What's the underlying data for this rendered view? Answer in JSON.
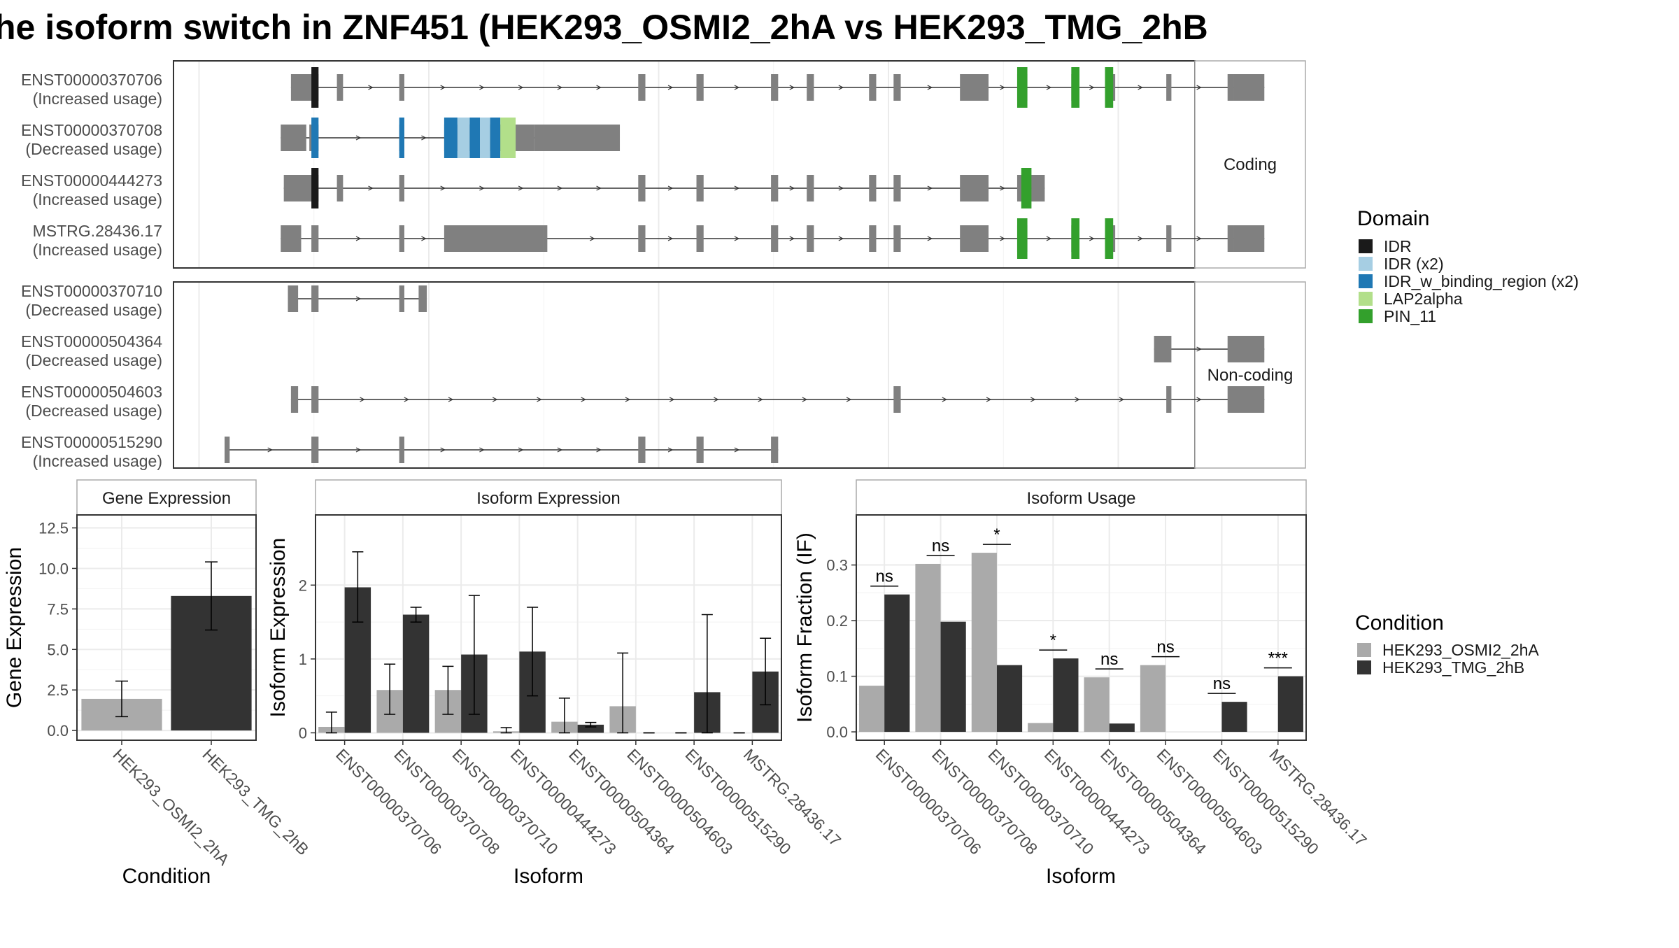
{
  "title": "he isoform switch in ZNF451 (HEK293_OSMI2_2hA vs HEK293_TMG_2hB",
  "colors": {
    "IDR": "#1a1a1a",
    "IDR (x2)": "#a6cee3",
    "IDR_w_binding_region (x2)": "#1f78b4",
    "LAP2alpha": "#b2df8a",
    "PIN_11": "#33a02c",
    "exon": "#808080",
    "cond_a": "#aaaaaa",
    "cond_b": "#333333"
  },
  "structure": {
    "coding_label": "Coding",
    "noncoding_label": "Non-coding",
    "coding": [
      {
        "name": "ENST00000370706",
        "usage": "(Increased usage)",
        "exons": [
          [
            0.115,
            0.125
          ],
          [
            0.125,
            0.142
          ],
          [
            0.16,
            0.166
          ],
          [
            0.221,
            0.226
          ],
          [
            0.455,
            0.462
          ],
          [
            0.512,
            0.519
          ],
          [
            0.585,
            0.592
          ],
          [
            0.62,
            0.627
          ],
          [
            0.681,
            0.688
          ],
          [
            0.705,
            0.712
          ],
          [
            0.77,
            0.798
          ],
          [
            0.826,
            0.836
          ],
          [
            0.879,
            0.887
          ],
          [
            0.912,
            0.922
          ],
          [
            0.972,
            0.977
          ],
          [
            1.032,
            1.038
          ],
          [
            1.038,
            1.068
          ]
        ],
        "domains": [
          [
            0.135,
            0.142,
            "IDR"
          ],
          [
            0.826,
            0.836,
            "PIN_11"
          ],
          [
            0.879,
            0.887,
            "PIN_11"
          ],
          [
            0.912,
            0.92,
            "PIN_11"
          ]
        ]
      },
      {
        "name": "ENST00000370708",
        "usage": "(Decreased usage)",
        "exons": [
          [
            0.105,
            0.125
          ],
          [
            0.125,
            0.13
          ],
          [
            0.133,
            0.142
          ],
          [
            0.221,
            0.226
          ],
          [
            0.265,
            0.353
          ],
          [
            0.353,
            0.437
          ]
        ],
        "domains": [
          [
            0.135,
            0.142,
            "IDR_w_binding_region (x2)"
          ],
          [
            0.221,
            0.226,
            "IDR_w_binding_region (x2)"
          ],
          [
            0.265,
            0.278,
            "IDR_w_binding_region (x2)"
          ],
          [
            0.278,
            0.29,
            "IDR (x2)"
          ],
          [
            0.29,
            0.3,
            "IDR_w_binding_region (x2)"
          ],
          [
            0.3,
            0.31,
            "IDR (x2)"
          ],
          [
            0.31,
            0.32,
            "IDR_w_binding_region (x2)"
          ],
          [
            0.32,
            0.335,
            "LAP2alpha"
          ]
        ]
      },
      {
        "name": "ENST00000444273",
        "usage": "(Increased usage)",
        "exons": [
          [
            0.108,
            0.125
          ],
          [
            0.125,
            0.142
          ],
          [
            0.16,
            0.166
          ],
          [
            0.221,
            0.226
          ],
          [
            0.455,
            0.462
          ],
          [
            0.512,
            0.519
          ],
          [
            0.585,
            0.592
          ],
          [
            0.62,
            0.627
          ],
          [
            0.681,
            0.688
          ],
          [
            0.705,
            0.712
          ],
          [
            0.77,
            0.798
          ],
          [
            0.826,
            0.84
          ],
          [
            0.84,
            0.853
          ]
        ],
        "domains": [
          [
            0.135,
            0.142,
            "IDR"
          ],
          [
            0.83,
            0.84,
            "PIN_11"
          ]
        ]
      },
      {
        "name": "MSTRG.28436.17",
        "usage": "(Increased usage)",
        "exons": [
          [
            0.105,
            0.125
          ],
          [
            0.135,
            0.142
          ],
          [
            0.221,
            0.226
          ],
          [
            0.265,
            0.362
          ],
          [
            0.362,
            0.366
          ],
          [
            0.455,
            0.462
          ],
          [
            0.512,
            0.519
          ],
          [
            0.585,
            0.592
          ],
          [
            0.62,
            0.627
          ],
          [
            0.681,
            0.688
          ],
          [
            0.705,
            0.712
          ],
          [
            0.77,
            0.798
          ],
          [
            0.826,
            0.836
          ],
          [
            0.879,
            0.887
          ],
          [
            0.912,
            0.922
          ],
          [
            0.972,
            0.977
          ],
          [
            1.032,
            1.038
          ],
          [
            1.038,
            1.068
          ]
        ],
        "domains": [
          [
            0.826,
            0.836,
            "PIN_11"
          ],
          [
            0.879,
            0.887,
            "PIN_11"
          ],
          [
            0.912,
            0.92,
            "PIN_11"
          ]
        ]
      }
    ],
    "noncoding": [
      {
        "name": "ENST00000370710",
        "usage": "(Decreased usage)",
        "exons": [
          [
            0.112,
            0.122
          ],
          [
            0.135,
            0.142
          ],
          [
            0.221,
            0.226
          ],
          [
            0.24,
            0.248
          ]
        ],
        "domains": []
      },
      {
        "name": "ENST00000504364",
        "usage": "(Decreased usage)",
        "exons": [
          [
            0.96,
            0.977
          ],
          [
            1.032,
            1.068
          ]
        ],
        "domains": []
      },
      {
        "name": "ENST00000504603",
        "usage": "(Decreased usage)",
        "exons": [
          [
            0.115,
            0.122
          ],
          [
            0.135,
            0.142
          ],
          [
            0.705,
            0.712
          ],
          [
            0.972,
            0.977
          ],
          [
            1.032,
            1.068
          ]
        ],
        "domains": []
      },
      {
        "name": "ENST00000515290",
        "usage": "(Increased usage)",
        "exons": [
          [
            0.05,
            0.055
          ],
          [
            0.135,
            0.142
          ],
          [
            0.221,
            0.226
          ],
          [
            0.455,
            0.462
          ],
          [
            0.512,
            0.519
          ],
          [
            0.585,
            0.592
          ]
        ],
        "domains": []
      }
    ]
  },
  "legend_domain": {
    "title": "Domain",
    "items": [
      "IDR",
      "IDR (x2)",
      "IDR_w_binding_region (x2)",
      "LAP2alpha",
      "PIN_11"
    ]
  },
  "legend_condition": {
    "title": "Condition",
    "items": [
      "HEK293_OSMI2_2hA",
      "HEK293_TMG_2hB"
    ]
  },
  "chart_data": [
    {
      "type": "bar",
      "title": "Gene Expression",
      "xlabel": "Condition",
      "ylabel": "Gene Expression",
      "categories": [
        "HEK293_OSMI2_2hA",
        "HEK293_TMG_2hB"
      ],
      "values": [
        1.95,
        8.3
      ],
      "err_low": [
        0.85,
        6.2
      ],
      "err_high": [
        3.05,
        10.4
      ],
      "ylim": [
        -0.6,
        13.3
      ],
      "yticks": [
        0.0,
        2.5,
        5.0,
        7.5,
        10.0,
        12.5
      ],
      "ytick_labels": [
        "0.0",
        "2.5",
        "5.0",
        "7.5",
        "10.0",
        "12.5"
      ]
    },
    {
      "type": "bar",
      "title": "Isoform Expression",
      "xlabel": "Isoform",
      "ylabel": "Isoform Expression",
      "categories": [
        "ENST00000370706",
        "ENST00000370708",
        "ENST00000370710",
        "ENST00000444273",
        "ENST00000504364",
        "ENST00000504603",
        "ENST00000515290",
        "MSTRG.28436.17"
      ],
      "series": [
        {
          "name": "HEK293_OSMI2_2hA",
          "values": [
            0.08,
            0.58,
            0.58,
            0.02,
            0.15,
            0.36,
            0.0,
            0.0
          ],
          "err_low": [
            0.0,
            0.25,
            0.25,
            0.0,
            0.0,
            0.0,
            0.0,
            0.0
          ],
          "err_high": [
            0.28,
            0.93,
            0.9,
            0.07,
            0.47,
            1.08,
            0.0,
            0.0
          ]
        },
        {
          "name": "HEK293_TMG_2hB",
          "values": [
            1.97,
            1.6,
            1.06,
            1.1,
            0.11,
            0.0,
            0.55,
            0.83
          ],
          "err_low": [
            1.5,
            1.5,
            0.25,
            0.5,
            0.08,
            0.0,
            0.0,
            0.38
          ],
          "err_high": [
            2.45,
            1.7,
            1.86,
            1.7,
            0.14,
            0.0,
            1.6,
            1.28
          ]
        }
      ],
      "ylim": [
        -0.1,
        2.95
      ],
      "yticks": [
        0,
        1,
        2
      ],
      "ytick_labels": [
        "0",
        "1",
        "2"
      ]
    },
    {
      "type": "bar",
      "title": "Isoform Usage",
      "xlabel": "Isoform",
      "ylabel": "Isoform Fraction (IF)",
      "categories": [
        "ENST00000370706",
        "ENST00000370708",
        "ENST00000370710",
        "ENST00000444273",
        "ENST00000504364",
        "ENST00000504603",
        "ENST00000515290",
        "MSTRG.28436.17"
      ],
      "series": [
        {
          "name": "HEK293_OSMI2_2hA",
          "values": [
            0.083,
            0.302,
            0.322,
            0.016,
            0.098,
            0.12,
            0.0,
            0.0
          ]
        },
        {
          "name": "HEK293_TMG_2hB",
          "values": [
            0.247,
            0.198,
            0.12,
            0.132,
            0.015,
            0.0,
            0.054,
            0.1
          ]
        }
      ],
      "significance": [
        "ns",
        "ns",
        "*",
        "*",
        "ns",
        "ns",
        "ns",
        "***"
      ],
      "ylim": [
        -0.015,
        0.39
      ],
      "yticks": [
        0.0,
        0.1,
        0.2,
        0.3
      ],
      "ytick_labels": [
        "0.0",
        "0.1",
        "0.2",
        "0.3"
      ]
    }
  ]
}
